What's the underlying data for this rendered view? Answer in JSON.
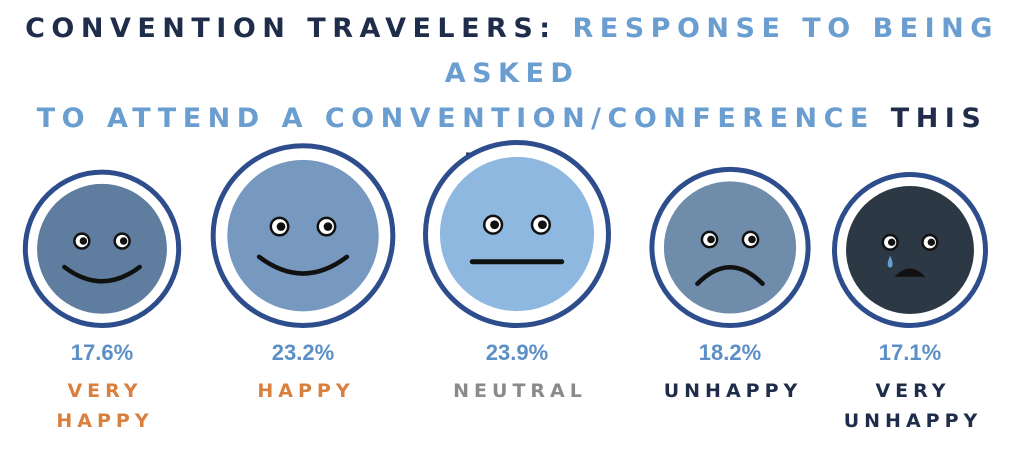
{
  "title": {
    "part1": "CONVENTION TRAVELERS:",
    "part2": "RESPONSE TO BEING ASKED",
    "part3": "TO ATTEND A CONVENTION/CONFERENCE",
    "part4": "THIS FALL"
  },
  "colors": {
    "title_dark": "#1f2d4b",
    "title_light": "#6a9ed0",
    "ring": "#2e4d8c",
    "percent": "#5b8fc6"
  },
  "chart_data": {
    "type": "bar",
    "title": "CONVENTION TRAVELERS: RESPONSE TO BEING ASKED TO ATTEND A CONVENTION/CONFERENCE THIS FALL",
    "categories": [
      "VERY HAPPY",
      "HAPPY",
      "NEUTRAL",
      "UNHAPPY",
      "VERY UNHAPPY"
    ],
    "values": [
      17.6,
      23.2,
      23.9,
      18.2,
      17.1
    ],
    "value_labels": [
      "17.6%",
      "23.2%",
      "23.9%",
      "18.2%",
      "17.1%"
    ],
    "label_lines": [
      [
        "VERY",
        "HAPPY"
      ],
      [
        "HAPPY"
      ],
      [
        "NEUTRAL"
      ],
      [
        "UNHAPPY"
      ],
      [
        "VERY",
        "UNHAPPY"
      ]
    ],
    "face_icons": [
      "very-happy-face-icon",
      "happy-face-icon",
      "neutral-face-icon",
      "unhappy-face-icon",
      "very-unhappy-face-icon"
    ],
    "face_colors": [
      "#5e7d9f",
      "#7799bf",
      "#8fb8e0",
      "#6f8cab",
      "#2d3845"
    ],
    "label_colors": [
      "#d9803f",
      "#d9803f",
      "#8a8a8a",
      "#1f2d4b",
      "#1f2d4b"
    ],
    "units": "%"
  }
}
